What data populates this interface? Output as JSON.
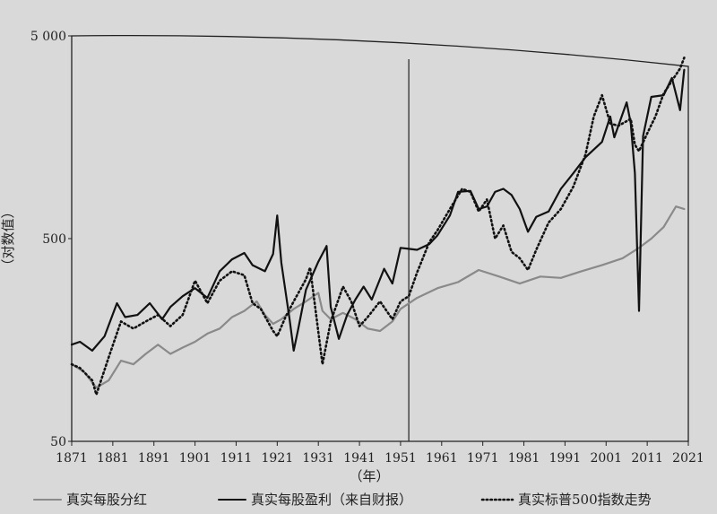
{
  "chart_data": {
    "type": "line",
    "title": "",
    "xlabel": "（年）",
    "ylabel": "（对数值）",
    "y_scale": "log",
    "ylim": [
      50,
      5000
    ],
    "xlim": [
      1871,
      2021
    ],
    "x_ticks": [
      "1871",
      "1881",
      "1891",
      "1901",
      "1911",
      "1921",
      "1931",
      "1941",
      "1951",
      "1961",
      "1971",
      "1981",
      "1991",
      "2001",
      "2011",
      "2021"
    ],
    "y_ticks": [
      {
        "value": 50,
        "label": "50"
      },
      {
        "value": 500,
        "label": "500"
      },
      {
        "value": 5000,
        "label": "5 000"
      }
    ],
    "vertical_marker_year": 1953,
    "grid": false,
    "legend_position": "bottom",
    "series": [
      {
        "name": "真实每股分红",
        "style": "solid-gray",
        "color": "#8a8a8a",
        "points": [
          [
            1871,
            120
          ],
          [
            1874,
            110
          ],
          [
            1877,
            92
          ],
          [
            1880,
            100
          ],
          [
            1883,
            125
          ],
          [
            1886,
            120
          ],
          [
            1889,
            135
          ],
          [
            1892,
            150
          ],
          [
            1895,
            135
          ],
          [
            1898,
            145
          ],
          [
            1901,
            155
          ],
          [
            1904,
            170
          ],
          [
            1907,
            180
          ],
          [
            1910,
            205
          ],
          [
            1913,
            220
          ],
          [
            1916,
            245
          ],
          [
            1918,
            210
          ],
          [
            1920,
            190
          ],
          [
            1922,
            200
          ],
          [
            1925,
            225
          ],
          [
            1928,
            245
          ],
          [
            1931,
            270
          ],
          [
            1932,
            220
          ],
          [
            1934,
            200
          ],
          [
            1937,
            215
          ],
          [
            1940,
            200
          ],
          [
            1943,
            180
          ],
          [
            1946,
            175
          ],
          [
            1949,
            195
          ],
          [
            1951,
            225
          ],
          [
            1955,
            255
          ],
          [
            1960,
            285
          ],
          [
            1965,
            305
          ],
          [
            1970,
            350
          ],
          [
            1975,
            325
          ],
          [
            1980,
            300
          ],
          [
            1985,
            325
          ],
          [
            1990,
            320
          ],
          [
            1995,
            345
          ],
          [
            2000,
            370
          ],
          [
            2005,
            400
          ],
          [
            2009,
            450
          ],
          [
            2012,
            500
          ],
          [
            2015,
            570
          ],
          [
            2018,
            720
          ],
          [
            2020,
            700
          ]
        ]
      },
      {
        "name": "真实每股盈利（来自财报）",
        "style": "solid-black",
        "color": "#111111",
        "points": [
          [
            1871,
            150
          ],
          [
            1873,
            155
          ],
          [
            1876,
            140
          ],
          [
            1879,
            165
          ],
          [
            1882,
            240
          ],
          [
            1884,
            205
          ],
          [
            1887,
            210
          ],
          [
            1890,
            240
          ],
          [
            1893,
            200
          ],
          [
            1895,
            230
          ],
          [
            1898,
            260
          ],
          [
            1901,
            285
          ],
          [
            1904,
            255
          ],
          [
            1907,
            345
          ],
          [
            1910,
            395
          ],
          [
            1913,
            425
          ],
          [
            1915,
            370
          ],
          [
            1918,
            345
          ],
          [
            1920,
            420
          ],
          [
            1921,
            650
          ],
          [
            1922,
            380
          ],
          [
            1924,
            200
          ],
          [
            1925,
            140
          ],
          [
            1926,
            175
          ],
          [
            1928,
            280
          ],
          [
            1931,
            385
          ],
          [
            1933,
            460
          ],
          [
            1934,
            230
          ],
          [
            1936,
            160
          ],
          [
            1938,
            210
          ],
          [
            1940,
            250
          ],
          [
            1942,
            290
          ],
          [
            1944,
            250
          ],
          [
            1947,
            355
          ],
          [
            1949,
            300
          ],
          [
            1951,
            450
          ],
          [
            1953,
            445
          ],
          [
            1955,
            440
          ],
          [
            1958,
            470
          ],
          [
            1960,
            520
          ],
          [
            1963,
            650
          ],
          [
            1965,
            850
          ],
          [
            1968,
            860
          ],
          [
            1970,
            700
          ],
          [
            1972,
            720
          ],
          [
            1974,
            850
          ],
          [
            1976,
            880
          ],
          [
            1978,
            820
          ],
          [
            1980,
            700
          ],
          [
            1982,
            540
          ],
          [
            1984,
            640
          ],
          [
            1987,
            680
          ],
          [
            1990,
            880
          ],
          [
            1993,
            1050
          ],
          [
            1996,
            1260
          ],
          [
            2000,
            1500
          ],
          [
            2002,
            2000
          ],
          [
            2003,
            1580
          ],
          [
            2006,
            2350
          ],
          [
            2007,
            1850
          ],
          [
            2008,
            1050
          ],
          [
            2009,
            220
          ],
          [
            2010,
            1600
          ],
          [
            2012,
            2500
          ],
          [
            2015,
            2550
          ],
          [
            2017,
            3100
          ],
          [
            2019,
            2150
          ],
          [
            2020,
            3400
          ]
        ]
      },
      {
        "name": "真实标普500指数走势",
        "style": "dotted-black",
        "color": "#111111",
        "points": [
          [
            1871,
            120
          ],
          [
            1873,
            115
          ],
          [
            1876,
            100
          ],
          [
            1877,
            85
          ],
          [
            1880,
            130
          ],
          [
            1883,
            195
          ],
          [
            1886,
            180
          ],
          [
            1889,
            195
          ],
          [
            1892,
            210
          ],
          [
            1895,
            185
          ],
          [
            1898,
            210
          ],
          [
            1901,
            310
          ],
          [
            1904,
            240
          ],
          [
            1907,
            310
          ],
          [
            1910,
            345
          ],
          [
            1913,
            330
          ],
          [
            1915,
            240
          ],
          [
            1917,
            225
          ],
          [
            1920,
            175
          ],
          [
            1921,
            165
          ],
          [
            1923,
            205
          ],
          [
            1925,
            245
          ],
          [
            1928,
            315
          ],
          [
            1929,
            360
          ],
          [
            1932,
            120
          ],
          [
            1934,
            195
          ],
          [
            1937,
            290
          ],
          [
            1939,
            245
          ],
          [
            1941,
            185
          ],
          [
            1943,
            205
          ],
          [
            1946,
            245
          ],
          [
            1949,
            200
          ],
          [
            1951,
            245
          ],
          [
            1953,
            260
          ],
          [
            1955,
            340
          ],
          [
            1958,
            480
          ],
          [
            1960,
            550
          ],
          [
            1963,
            700
          ],
          [
            1966,
            880
          ],
          [
            1968,
            850
          ],
          [
            1970,
            680
          ],
          [
            1972,
            780
          ],
          [
            1974,
            500
          ],
          [
            1976,
            580
          ],
          [
            1978,
            430
          ],
          [
            1980,
            400
          ],
          [
            1982,
            350
          ],
          [
            1984,
            440
          ],
          [
            1987,
            600
          ],
          [
            1990,
            700
          ],
          [
            1993,
            900
          ],
          [
            1996,
            1300
          ],
          [
            1998,
            2000
          ],
          [
            2000,
            2550
          ],
          [
            2002,
            1850
          ],
          [
            2004,
            1800
          ],
          [
            2007,
            1950
          ],
          [
            2008,
            1450
          ],
          [
            2009,
            1350
          ],
          [
            2011,
            1650
          ],
          [
            2013,
            2000
          ],
          [
            2015,
            2600
          ],
          [
            2017,
            3000
          ],
          [
            2019,
            3450
          ],
          [
            2020,
            3900
          ]
        ]
      }
    ]
  }
}
